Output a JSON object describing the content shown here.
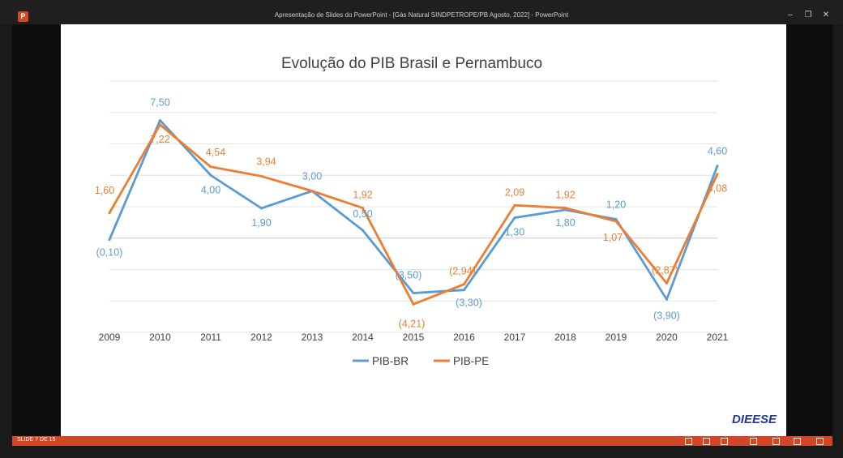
{
  "window": {
    "title": "Apresentação de Slides do PowerPoint - [Gás Natural SINDPETROPE/PB Agosto, 2022] - PowerPoint",
    "app_icon_letter": "P",
    "status_left": "SLIDE 7 DE 15",
    "minimize": "–",
    "restore": "❐",
    "close": "✕"
  },
  "brand": {
    "logo_text": "DIEESE",
    "logo_color": "#1f3a93"
  },
  "chart_data": {
    "type": "line",
    "title": "Evolução do PIB Brasil e Pernambuco",
    "xlabel": "",
    "ylabel": "",
    "categories": [
      "2009",
      "2010",
      "2011",
      "2012",
      "2013",
      "2014",
      "2015",
      "2016",
      "2017",
      "2018",
      "2019",
      "2020",
      "2021"
    ],
    "ylim": [
      -6,
      10
    ],
    "series": [
      {
        "name": "PIB-BR",
        "color": "#5b9bd5",
        "values": [
          -0.1,
          7.5,
          4.0,
          1.9,
          3.0,
          0.5,
          -3.5,
          -3.3,
          1.3,
          1.8,
          1.2,
          -3.9,
          4.6
        ],
        "labels": [
          "(0,10)",
          "7,50",
          "4,00",
          "1,90",
          "3,00",
          "0,50",
          "(3,50)",
          "(3,30)",
          "1,30",
          "1,80",
          "1,20",
          "(3,90)",
          "4,60"
        ]
      },
      {
        "name": "PIB-PE",
        "color": "#ed7d31",
        "values": [
          1.6,
          7.22,
          4.54,
          3.94,
          3.0,
          1.92,
          -4.21,
          -2.94,
          2.09,
          1.92,
          1.07,
          -2.87,
          4.08
        ],
        "labels": [
          "1,60",
          "7,22",
          "4,54",
          "3,94",
          "",
          "1,92",
          "(4,21)",
          "(2,94)",
          "2,09",
          "1,92",
          "1,07",
          "(2,87)",
          "4,08"
        ]
      }
    ],
    "grid": true,
    "legend": "bottom"
  }
}
